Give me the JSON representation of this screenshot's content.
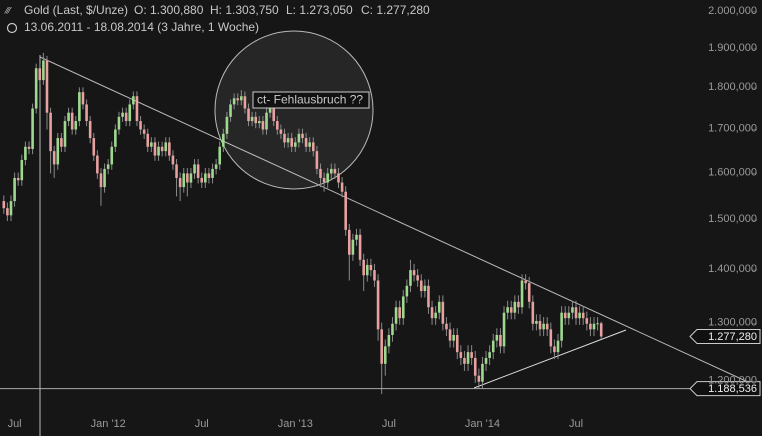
{
  "chart_data": {
    "type": "candlestick",
    "title": "Gold (Last, $/Unze)",
    "ohlc_header": [
      "O: 1.300,880",
      "H: 1.303,750",
      "L: 1.273,050",
      "C: 1.277,280"
    ],
    "subtitle": "13.06.2011 - 18.08.2014 (3 Jahre, 1 Woche)",
    "annotation": "ct- Fehlausbruch ??",
    "log_scale": true,
    "up_color": "#9fd98f",
    "down_color": "#e8a0a0",
    "categories": [
      null,
      null,
      null,
      "Jul",
      null,
      null,
      null,
      null,
      null,
      null,
      null,
      null,
      null,
      null,
      null,
      null,
      null,
      null,
      null,
      null,
      null,
      null,
      null,
      null,
      null,
      null,
      null,
      null,
      null,
      "Jan '12",
      null,
      null,
      null,
      null,
      null,
      null,
      null,
      null,
      null,
      null,
      null,
      null,
      null,
      null,
      null,
      null,
      null,
      null,
      null,
      null,
      null,
      null,
      null,
      null,
      null,
      "Jul",
      null,
      null,
      null,
      null,
      null,
      null,
      null,
      null,
      null,
      null,
      null,
      null,
      null,
      null,
      null,
      null,
      null,
      null,
      null,
      null,
      null,
      null,
      null,
      null,
      null,
      "Jan '13",
      null,
      null,
      null,
      null,
      null,
      null,
      null,
      null,
      null,
      null,
      null,
      null,
      null,
      null,
      null,
      null,
      null,
      null,
      null,
      null,
      null,
      null,
      null,
      null,
      null,
      "Jul",
      null,
      null,
      null,
      null,
      null,
      null,
      null,
      null,
      null,
      null,
      null,
      null,
      null,
      null,
      null,
      null,
      null,
      null,
      null,
      null,
      null,
      null,
      null,
      null,
      null,
      "Jan '14",
      null,
      null,
      null,
      null,
      null,
      null,
      null,
      null,
      null,
      null,
      null,
      null,
      null,
      null,
      null,
      null,
      null,
      null,
      null,
      null,
      null,
      null,
      null,
      null,
      null,
      "Jul",
      null,
      null,
      null,
      null,
      null,
      null,
      null
    ],
    "open": [
      1540,
      1525,
      1510,
      1540,
      1590,
      1585,
      1630,
      1660,
      1655,
      1750,
      1850,
      1820,
      1870,
      1740,
      1650,
      1620,
      1680,
      1660,
      1720,
      1740,
      1700,
      1720,
      1790,
      1760,
      1720,
      1680,
      1640,
      1600,
      1570,
      1610,
      1620,
      1660,
      1700,
      1730,
      1740,
      1720,
      1760,
      1780,
      1720,
      1700,
      1690,
      1660,
      1670,
      1640,
      1660,
      1650,
      1670,
      1640,
      1620,
      1590,
      1570,
      1600,
      1580,
      1600,
      1620,
      1590,
      1580,
      1600,
      1590,
      1610,
      1620,
      1660,
      1690,
      1730,
      1760,
      1775,
      1770,
      1780,
      1750,
      1720,
      1730,
      1715,
      1720,
      1700,
      1740,
      1750,
      1720,
      1700,
      1690,
      1670,
      1680,
      1660,
      1670,
      1690,
      1680,
      1660,
      1670,
      1650,
      1610,
      1590,
      1580,
      1600,
      1610,
      1600,
      1580,
      1560,
      1480,
      1430,
      1460,
      1470,
      1420,
      1390,
      1410,
      1400,
      1380,
      1290,
      1230,
      1260,
      1280,
      1300,
      1330,
      1310,
      1350,
      1370,
      1400,
      1390,
      1380,
      1360,
      1370,
      1330,
      1310,
      1320,
      1340,
      1300,
      1290,
      1270,
      1280,
      1250,
      1240,
      1230,
      1250,
      1240,
      1210,
      1200,
      1230,
      1240,
      1250,
      1270,
      1280,
      1260,
      1320,
      1330,
      1320,
      1340,
      1330,
      1380,
      1375,
      1340,
      1300,
      1305,
      1290,
      1300,
      1290,
      1260,
      1250,
      1270,
      1320,
      1310,
      1320,
      1330,
      1310,
      1320,
      1310,
      1300,
      1290,
      1300,
      1300.88
    ],
    "close": [
      1525,
      1510,
      1540,
      1590,
      1585,
      1630,
      1660,
      1655,
      1750,
      1850,
      1820,
      1870,
      1740,
      1650,
      1620,
      1680,
      1660,
      1720,
      1740,
      1700,
      1720,
      1790,
      1760,
      1720,
      1680,
      1640,
      1600,
      1570,
      1610,
      1620,
      1660,
      1700,
      1730,
      1740,
      1720,
      1760,
      1780,
      1720,
      1700,
      1690,
      1660,
      1670,
      1640,
      1660,
      1650,
      1670,
      1640,
      1620,
      1590,
      1570,
      1600,
      1580,
      1600,
      1620,
      1590,
      1580,
      1600,
      1590,
      1610,
      1620,
      1660,
      1690,
      1730,
      1760,
      1775,
      1770,
      1780,
      1750,
      1720,
      1730,
      1715,
      1720,
      1700,
      1740,
      1750,
      1720,
      1700,
      1690,
      1670,
      1680,
      1660,
      1670,
      1690,
      1680,
      1660,
      1670,
      1650,
      1610,
      1590,
      1580,
      1600,
      1610,
      1600,
      1580,
      1560,
      1480,
      1430,
      1460,
      1470,
      1420,
      1390,
      1410,
      1400,
      1380,
      1290,
      1230,
      1260,
      1280,
      1300,
      1330,
      1310,
      1350,
      1370,
      1400,
      1390,
      1380,
      1360,
      1370,
      1330,
      1310,
      1320,
      1340,
      1300,
      1290,
      1270,
      1280,
      1250,
      1240,
      1230,
      1250,
      1240,
      1210,
      1200,
      1230,
      1240,
      1250,
      1270,
      1280,
      1260,
      1320,
      1330,
      1320,
      1340,
      1330,
      1380,
      1375,
      1340,
      1300,
      1305,
      1290,
      1300,
      1290,
      1260,
      1250,
      1270,
      1320,
      1310,
      1320,
      1330,
      1310,
      1320,
      1310,
      1300,
      1290,
      1300,
      1300.88,
      1277.28
    ],
    "high": [
      1552,
      1537,
      1552,
      1602,
      1602,
      1642,
      1672,
      1672,
      1762,
      1862,
      1862,
      1890,
      1882,
      1752,
      1662,
      1692,
      1692,
      1732,
      1752,
      1752,
      1732,
      1802,
      1802,
      1772,
      1732,
      1692,
      1652,
      1612,
      1622,
      1632,
      1672,
      1712,
      1742,
      1752,
      1752,
      1772,
      1792,
      1792,
      1732,
      1712,
      1702,
      1682,
      1682,
      1672,
      1672,
      1682,
      1682,
      1652,
      1632,
      1602,
      1612,
      1612,
      1612,
      1632,
      1632,
      1602,
      1612,
      1612,
      1622,
      1632,
      1672,
      1702,
      1742,
      1772,
      1787,
      1787,
      1795,
      1792,
      1762,
      1742,
      1742,
      1732,
      1732,
      1752,
      1762,
      1762,
      1732,
      1712,
      1702,
      1692,
      1692,
      1682,
      1702,
      1702,
      1692,
      1682,
      1682,
      1662,
      1622,
      1602,
      1612,
      1622,
      1622,
      1612,
      1592,
      1572,
      1492,
      1472,
      1482,
      1482,
      1432,
      1422,
      1422,
      1412,
      1392,
      1302,
      1272,
      1292,
      1312,
      1342,
      1342,
      1362,
      1382,
      1420,
      1412,
      1402,
      1392,
      1382,
      1382,
      1342,
      1332,
      1352,
      1352,
      1312,
      1302,
      1292,
      1292,
      1262,
      1252,
      1262,
      1262,
      1252,
      1222,
      1242,
      1252,
      1262,
      1282,
      1292,
      1292,
      1332,
      1342,
      1342,
      1352,
      1352,
      1392,
      1392,
      1387,
      1352,
      1317,
      1317,
      1312,
      1312,
      1302,
      1272,
      1282,
      1332,
      1332,
      1332,
      1342,
      1342,
      1332,
      1332,
      1322,
      1312,
      1312,
      1312,
      1303.75
    ],
    "low": [
      1513,
      1498,
      1498,
      1528,
      1573,
      1573,
      1618,
      1643,
      1643,
      1738,
      1808,
      1808,
      1700,
      1600,
      1590,
      1608,
      1648,
      1648,
      1708,
      1688,
      1688,
      1708,
      1748,
      1708,
      1668,
      1628,
      1588,
      1530,
      1558,
      1598,
      1608,
      1648,
      1688,
      1718,
      1708,
      1708,
      1748,
      1708,
      1688,
      1678,
      1648,
      1648,
      1628,
      1628,
      1638,
      1638,
      1628,
      1608,
      1550,
      1540,
      1558,
      1550,
      1568,
      1588,
      1578,
      1568,
      1568,
      1578,
      1578,
      1598,
      1608,
      1648,
      1678,
      1718,
      1748,
      1758,
      1758,
      1738,
      1708,
      1708,
      1703,
      1703,
      1688,
      1688,
      1728,
      1708,
      1688,
      1678,
      1658,
      1658,
      1648,
      1648,
      1658,
      1668,
      1648,
      1648,
      1638,
      1598,
      1570,
      1560,
      1568,
      1588,
      1588,
      1568,
      1548,
      1468,
      1380,
      1418,
      1448,
      1408,
      1360,
      1378,
      1388,
      1368,
      1270,
      1180,
      1210,
      1248,
      1268,
      1288,
      1298,
      1298,
      1338,
      1358,
      1378,
      1368,
      1348,
      1348,
      1318,
      1298,
      1298,
      1308,
      1288,
      1278,
      1258,
      1258,
      1238,
      1228,
      1218,
      1218,
      1228,
      1198,
      1188,
      1188,
      1218,
      1228,
      1238,
      1258,
      1248,
      1248,
      1308,
      1308,
      1308,
      1318,
      1318,
      1363,
      1328,
      1288,
      1288,
      1278,
      1278,
      1278,
      1248,
      1238,
      1238,
      1258,
      1298,
      1298,
      1308,
      1298,
      1298,
      1298,
      1288,
      1278,
      1278,
      1288,
      1273.05
    ],
    "ylim": [
      1154,
      2033
    ],
    "yticks": [
      {
        "value": 1200,
        "label": "1.200,000"
      },
      {
        "value": 1300,
        "label": "1.300,000"
      },
      {
        "value": 1400,
        "label": "1.400,000"
      },
      {
        "value": 1500,
        "label": "1.500,000"
      },
      {
        "value": 1600,
        "label": "1.600,000"
      },
      {
        "value": 1700,
        "label": "1.700,000"
      },
      {
        "value": 1800,
        "label": "1.800,000"
      },
      {
        "value": 1900,
        "label": "1.900,000"
      },
      {
        "value": 2000,
        "label": "2.000,000"
      }
    ],
    "price_markers": [
      {
        "value": 1277.28,
        "label": "1.277,280"
      },
      {
        "value": 1188.536,
        "label": "1.188,536"
      }
    ]
  }
}
